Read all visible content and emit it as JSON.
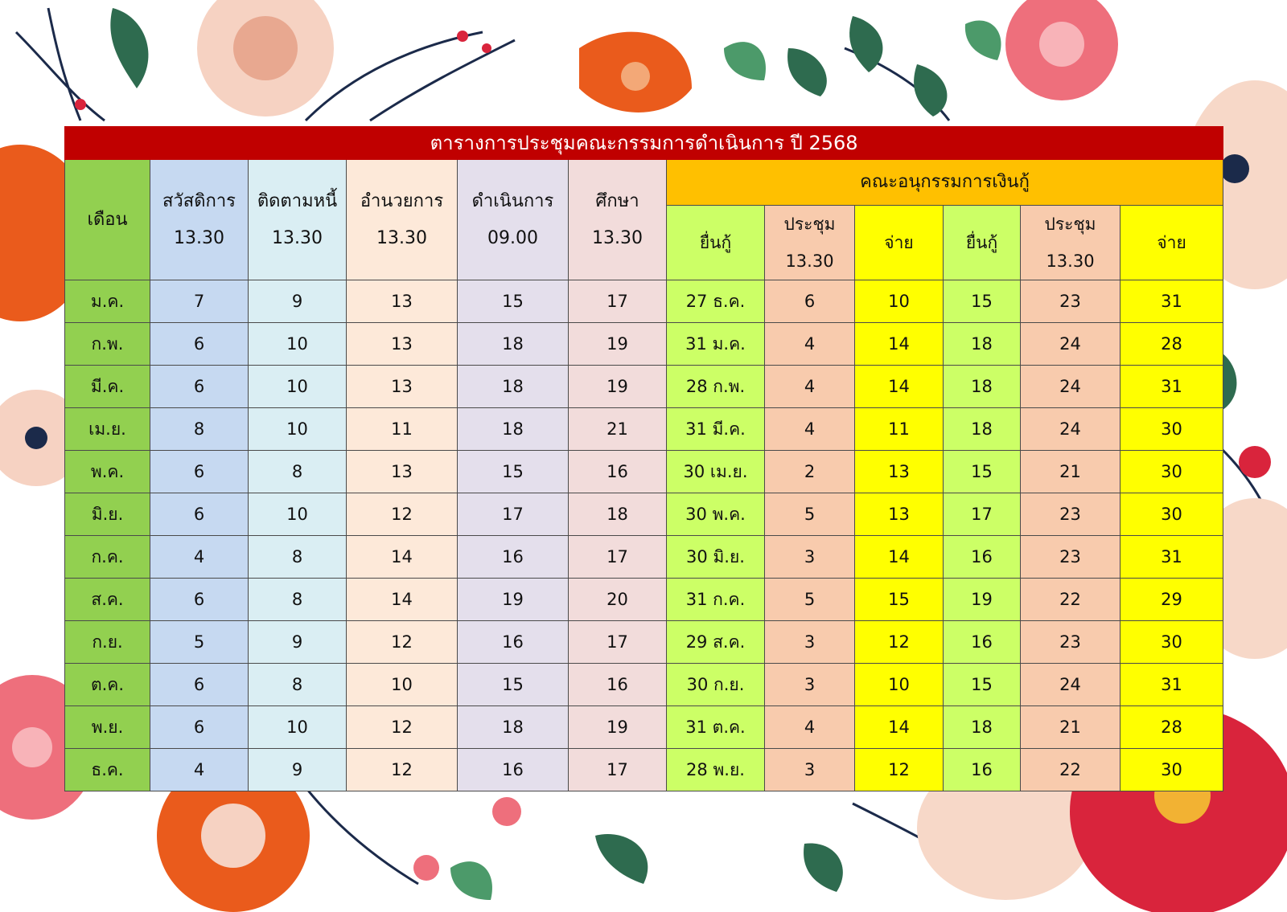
{
  "title": "ตารางการประชุมคณะกรรมการดำเนินการ ปี 2568",
  "headers": {
    "month": "เดือน",
    "committees": [
      {
        "name": "สวัสดิการ",
        "time": "13.30"
      },
      {
        "name": "ติดตามหนี้",
        "time": "13.30"
      },
      {
        "name": "อำนวยการ",
        "time": "13.30"
      },
      {
        "name": "ดำเนินการ",
        "time": "09.00"
      },
      {
        "name": "ศึกษา",
        "time": "13.30"
      }
    ],
    "loan_group": "คณะอนุกรรมการเงินกู้",
    "loan_cols": [
      {
        "name": "ยื่นกู้",
        "time": ""
      },
      {
        "name": "ประชุม",
        "time": "13.30"
      },
      {
        "name": "จ่าย",
        "time": ""
      },
      {
        "name": "ยื่นกู้",
        "time": ""
      },
      {
        "name": "ประชุม",
        "time": "13.30"
      },
      {
        "name": "จ่าย",
        "time": ""
      }
    ]
  },
  "rows": [
    [
      "ม.ค.",
      "7",
      "9",
      "13",
      "15",
      "17",
      "27 ธ.ค.",
      "6",
      "10",
      "15",
      "23",
      "31"
    ],
    [
      "ก.พ.",
      "6",
      "10",
      "13",
      "18",
      "19",
      "31 ม.ค.",
      "4",
      "14",
      "18",
      "24",
      "28"
    ],
    [
      "มี.ค.",
      "6",
      "10",
      "13",
      "18",
      "19",
      "28 ก.พ.",
      "4",
      "14",
      "18",
      "24",
      "31"
    ],
    [
      "เม.ย.",
      "8",
      "10",
      "11",
      "18",
      "21",
      "31 มี.ค.",
      "4",
      "11",
      "18",
      "24",
      "30"
    ],
    [
      "พ.ค.",
      "6",
      "8",
      "13",
      "15",
      "16",
      "30 เม.ย.",
      "2",
      "13",
      "15",
      "21",
      "30"
    ],
    [
      "มิ.ย.",
      "6",
      "10",
      "12",
      "17",
      "18",
      "30 พ.ค.",
      "5",
      "13",
      "17",
      "23",
      "30"
    ],
    [
      "ก.ค.",
      "4",
      "8",
      "14",
      "16",
      "17",
      "30 มิ.ย.",
      "3",
      "14",
      "16",
      "23",
      "31"
    ],
    [
      "ส.ค.",
      "6",
      "8",
      "14",
      "19",
      "20",
      "31 ก.ค.",
      "5",
      "15",
      "19",
      "22",
      "29"
    ],
    [
      "ก.ย.",
      "5",
      "9",
      "12",
      "16",
      "17",
      "29 ส.ค.",
      "3",
      "12",
      "16",
      "23",
      "30"
    ],
    [
      "ต.ค.",
      "6",
      "8",
      "10",
      "15",
      "16",
      "30 ก.ย.",
      "3",
      "10",
      "15",
      "24",
      "31"
    ],
    [
      "พ.ย.",
      "6",
      "10",
      "12",
      "18",
      "19",
      "31 ต.ค.",
      "4",
      "14",
      "18",
      "21",
      "28"
    ],
    [
      "ธ.ค.",
      "4",
      "9",
      "12",
      "16",
      "17",
      "28 พ.ย.",
      "3",
      "12",
      "16",
      "22",
      "30"
    ]
  ],
  "colors": {
    "title_bg": "#c00000",
    "month_col": "#92d050",
    "welfare": "#c6d9f1",
    "debt": "#daeef3",
    "admin": "#fde9d9",
    "operation": "#e4dfec",
    "education": "#f2dcdb",
    "loan_group": "#ffc000",
    "loan_apply": "#ccff66",
    "loan_meeting": "#f8cbad",
    "loan_pay": "#ffff00"
  }
}
